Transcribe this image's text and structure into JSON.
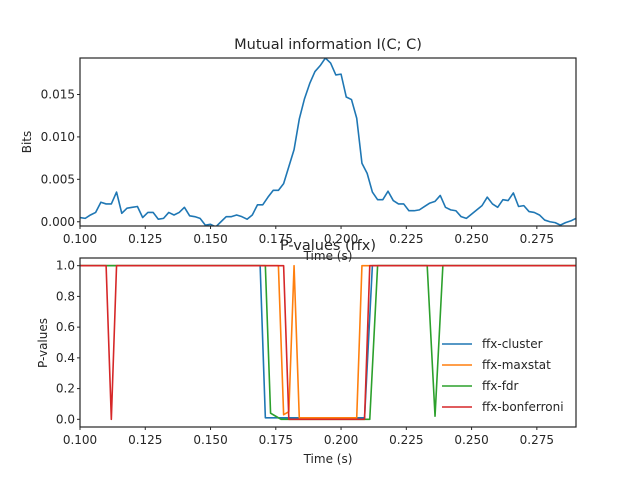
{
  "chart_data": [
    {
      "type": "line",
      "title": "Mutual information I(C; C)",
      "xlabel": "Time (s)",
      "ylabel": "Bits",
      "xlim": [
        0.1,
        0.29
      ],
      "ylim": [
        -0.0005,
        0.0193
      ],
      "xticks": [
        0.1,
        0.125,
        0.15,
        0.175,
        0.2,
        0.225,
        0.25,
        0.275
      ],
      "xtick_labels": [
        "0.100",
        "0.125",
        "0.150",
        "0.175",
        "0.200",
        "0.225",
        "0.250",
        "0.275"
      ],
      "yticks": [
        0.0,
        0.005,
        0.01,
        0.015
      ],
      "ytick_labels": [
        "0.000",
        "0.005",
        "0.010",
        "0.015"
      ],
      "grid": false,
      "series": [
        {
          "color": "#1f77b4",
          "x": [
            0.1,
            0.102,
            0.104,
            0.106,
            0.108,
            0.11,
            0.112,
            0.114,
            0.116,
            0.118,
            0.12,
            0.122,
            0.124,
            0.126,
            0.128,
            0.13,
            0.132,
            0.134,
            0.136,
            0.138,
            0.14,
            0.142,
            0.144,
            0.146,
            0.148,
            0.15,
            0.152,
            0.154,
            0.156,
            0.158,
            0.16,
            0.162,
            0.164,
            0.166,
            0.168,
            0.17,
            0.172,
            0.174,
            0.176,
            0.178,
            0.18,
            0.182,
            0.184,
            0.186,
            0.188,
            0.19,
            0.192,
            0.194,
            0.196,
            0.198,
            0.2,
            0.202,
            0.204,
            0.206,
            0.208,
            0.21,
            0.212,
            0.214,
            0.216,
            0.218,
            0.22,
            0.222,
            0.224,
            0.226,
            0.228,
            0.23,
            0.232,
            0.234,
            0.236,
            0.238,
            0.24,
            0.242,
            0.244,
            0.246,
            0.248,
            0.25,
            0.252,
            0.254,
            0.256,
            0.258,
            0.26,
            0.262,
            0.264,
            0.266,
            0.268,
            0.27,
            0.272,
            0.274,
            0.276,
            0.278,
            0.28,
            0.282,
            0.284,
            0.286,
            0.288,
            0.29
          ],
          "y": [
            0.0005,
            0.0004,
            0.0008,
            0.0011,
            0.0023,
            0.0021,
            0.0021,
            0.0035,
            0.001,
            0.0016,
            0.0017,
            0.0018,
            0.0005,
            0.0011,
            0.0011,
            0.0003,
            0.0004,
            0.0011,
            0.0008,
            0.0011,
            0.0017,
            0.0007,
            0.0006,
            0.0004,
            -0.0004,
            -0.0003,
            -0.0006,
            0.0,
            0.0006,
            0.0006,
            0.0008,
            0.0006,
            0.0003,
            0.0008,
            0.002,
            0.002,
            0.0029,
            0.0037,
            0.0037,
            0.0045,
            0.0065,
            0.0085,
            0.0121,
            0.0145,
            0.0163,
            0.0177,
            0.0184,
            0.0193,
            0.0187,
            0.0173,
            0.0174,
            0.0147,
            0.0144,
            0.0122,
            0.0069,
            0.0057,
            0.0035,
            0.0026,
            0.0026,
            0.0036,
            0.0025,
            0.0021,
            0.0021,
            0.0013,
            0.0013,
            0.0014,
            0.0018,
            0.0022,
            0.0024,
            0.0031,
            0.0017,
            0.0014,
            0.0013,
            0.0006,
            0.0004,
            0.0009,
            0.0014,
            0.0019,
            0.0029,
            0.0021,
            0.0017,
            0.0026,
            0.0025,
            0.0034,
            0.0018,
            0.0019,
            0.0012,
            0.0011,
            0.0008,
            0.0002,
            0.0,
            -0.0001,
            -0.0004,
            -0.0001,
            0.0001,
            0.0004
          ]
        }
      ]
    },
    {
      "type": "line",
      "title": "P-values (rfx)",
      "xlabel": "Time (s)",
      "ylabel": "P-values",
      "xlim": [
        0.1,
        0.29
      ],
      "ylim": [
        -0.05,
        1.05
      ],
      "xticks": [
        0.1,
        0.125,
        0.15,
        0.175,
        0.2,
        0.225,
        0.25,
        0.275
      ],
      "xtick_labels": [
        "0.100",
        "0.125",
        "0.150",
        "0.175",
        "0.200",
        "0.225",
        "0.250",
        "0.275"
      ],
      "yticks": [
        0.0,
        0.2,
        0.4,
        0.6,
        0.8,
        1.0
      ],
      "ytick_labels": [
        "0.0",
        "0.2",
        "0.4",
        "0.6",
        "0.8",
        "1.0"
      ],
      "grid": false,
      "legend": "lower right",
      "series": [
        {
          "name": "ffx-cluster",
          "color": "#1f77b4",
          "x": [
            0.1,
            0.169,
            0.171,
            0.209,
            0.212,
            0.29
          ],
          "y": [
            1.0,
            1.0,
            0.01,
            0.01,
            1.0,
            1.0
          ]
        },
        {
          "name": "ffx-maxstat",
          "color": "#ff7f0e",
          "x": [
            0.1,
            0.176,
            0.178,
            0.18,
            0.182,
            0.184,
            0.206,
            0.208,
            0.29
          ],
          "y": [
            1.0,
            1.0,
            0.03,
            0.05,
            1.0,
            0.01,
            0.01,
            1.0,
            1.0
          ]
        },
        {
          "name": "ffx-fdr",
          "color": "#2ca02c",
          "x": [
            0.1,
            0.171,
            0.173,
            0.175,
            0.177,
            0.179,
            0.211,
            0.214,
            0.233,
            0.236,
            0.239,
            0.29
          ],
          "y": [
            1.0,
            1.0,
            0.04,
            0.02,
            0.0,
            0.0,
            0.0,
            1.0,
            1.0,
            0.02,
            1.0,
            1.0
          ]
        },
        {
          "name": "ffx-bonferroni",
          "color": "#d62728",
          "x": [
            0.1,
            0.11,
            0.112,
            0.114,
            0.178,
            0.18,
            0.209,
            0.211,
            0.29
          ],
          "y": [
            1.0,
            1.0,
            0.0,
            1.0,
            1.0,
            0.0,
            0.0,
            1.0,
            1.0
          ]
        }
      ]
    }
  ]
}
